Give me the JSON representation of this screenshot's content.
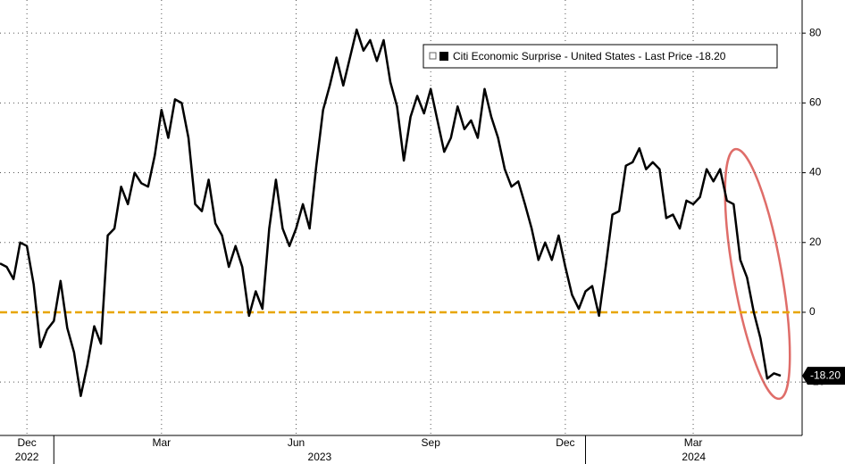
{
  "chart_data": {
    "type": "line",
    "categories": [
      null,
      null,
      null,
      null,
      "Dec",
      null,
      null,
      null,
      null,
      null,
      null,
      null,
      null,
      null,
      null,
      null,
      null,
      null,
      null,
      null,
      null,
      null,
      null,
      null,
      "Mar",
      null,
      null,
      null,
      null,
      null,
      null,
      null,
      null,
      null,
      null,
      null,
      null,
      null,
      null,
      null,
      null,
      null,
      null,
      null,
      "Jun",
      null,
      null,
      null,
      null,
      null,
      null,
      null,
      null,
      null,
      null,
      null,
      null,
      null,
      null,
      null,
      null,
      null,
      null,
      null,
      "Sep",
      null,
      null,
      null,
      null,
      null,
      null,
      null,
      null,
      null,
      null,
      null,
      null,
      null,
      null,
      null,
      null,
      null,
      null,
      null,
      "Dec",
      null,
      null,
      null,
      null,
      null,
      null,
      null,
      null,
      null,
      null,
      null,
      null,
      null,
      null,
      null,
      null,
      null,
      null,
      "Mar",
      null,
      null,
      null,
      null,
      null,
      null,
      null,
      null,
      null,
      null,
      null,
      null,
      null
    ],
    "x_groups": [
      {
        "label": "2022",
        "start": 0
      },
      {
        "label": "2023",
        "start": 8
      },
      {
        "label": "2024",
        "start": 87
      }
    ],
    "series": [
      {
        "name": "Citi Economic Surprise - United States - Last Price -18.20",
        "color": "#000000",
        "values": [
          14,
          13,
          9.5,
          20,
          19,
          8,
          -10,
          -5,
          -2.5,
          9,
          -4.5,
          -11.5,
          -24,
          -15,
          -4,
          -9,
          22,
          24,
          36,
          31,
          40,
          37,
          36,
          45,
          58,
          50,
          61,
          60,
          50,
          31,
          29,
          38,
          25.5,
          22,
          13,
          19,
          13,
          -1,
          6,
          1,
          24,
          38,
          24,
          19,
          24,
          31,
          24,
          42,
          58,
          65,
          73,
          65,
          73,
          81,
          75,
          78,
          72,
          78,
          66,
          59,
          43.5,
          56,
          62,
          57,
          64,
          55,
          46,
          50,
          59,
          52.5,
          55,
          50,
          64,
          56,
          50,
          41,
          36,
          37.5,
          31,
          24,
          15,
          20,
          15,
          22,
          13,
          5,
          1,
          6,
          7.5,
          -1,
          13,
          28,
          29,
          42,
          43,
          47,
          41,
          43,
          41,
          27,
          28,
          24,
          32,
          31,
          33,
          41,
          37.5,
          41,
          32,
          31,
          15,
          10,
          0,
          -7.5,
          -19,
          -17.5,
          -18.2
        ],
        "value_labels": [
          null,
          null,
          null,
          null,
          null,
          null,
          null,
          null,
          null,
          null,
          null,
          null,
          null,
          null,
          null,
          null,
          null,
          null,
          null,
          null,
          null,
          null,
          null,
          null,
          null,
          null,
          null,
          null,
          null,
          null,
          null,
          null,
          null,
          null,
          null,
          null,
          null,
          null,
          null,
          null,
          null,
          null,
          null,
          null,
          null,
          null,
          null,
          null,
          null,
          null,
          null,
          null,
          null,
          null,
          null,
          null,
          null,
          null,
          null,
          null,
          null,
          null,
          null,
          null,
          null,
          null,
          null,
          null,
          null,
          null,
          null,
          null,
          null,
          null,
          null,
          null,
          null,
          null,
          null,
          null,
          null,
          null,
          null,
          null,
          null,
          null,
          null,
          null,
          null,
          null,
          null,
          null,
          null,
          null,
          null,
          null,
          null,
          null,
          null,
          null,
          null,
          null,
          null,
          null,
          null,
          null,
          null,
          null,
          null,
          null,
          null,
          null,
          null,
          null,
          null,
          null,
          "-18.20"
        ]
      }
    ],
    "ylim": [
      -35.3,
      89.5
    ],
    "yticks": [
      80,
      60,
      40,
      20,
      0,
      -20
    ],
    "grid": true,
    "zero_line_color": "#e8a600"
  }
}
